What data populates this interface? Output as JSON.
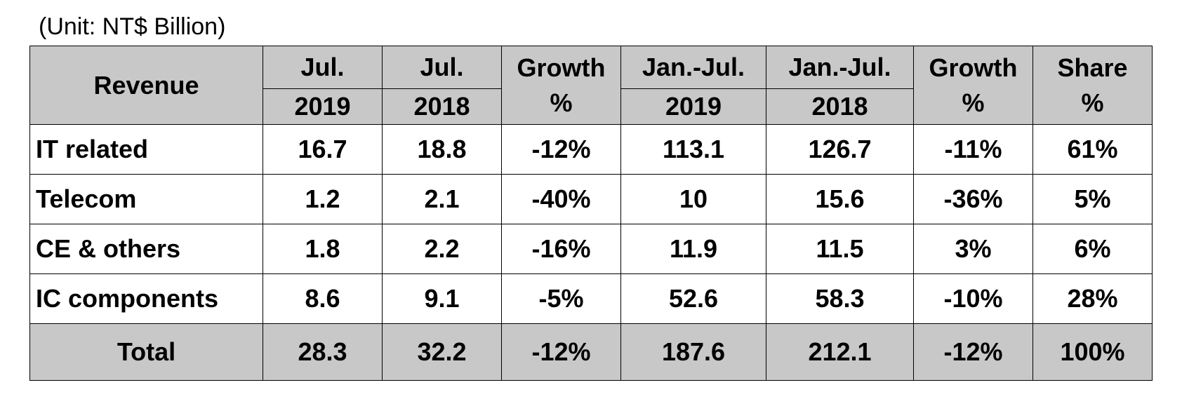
{
  "unit_note": "(Unit: NT$ Billion)",
  "chart_data": {
    "type": "table",
    "header": {
      "revenue": "Revenue",
      "groups": [
        {
          "top": "Jul.",
          "bottom": "2019"
        },
        {
          "top": "Jul.",
          "bottom": "2018"
        },
        {
          "top": "Growth",
          "bottom": "%"
        },
        {
          "top": "Jan.-Jul.",
          "bottom": "2019"
        },
        {
          "top": "Jan.-Jul.",
          "bottom": "2018"
        },
        {
          "top": "Growth",
          "bottom": "%"
        },
        {
          "top": "Share",
          "bottom": "%"
        }
      ]
    },
    "rows": [
      {
        "label": "IT related",
        "cells": [
          "16.7",
          "18.8",
          "-12%",
          "113.1",
          "126.7",
          "-11%",
          "61%"
        ]
      },
      {
        "label": "Telecom",
        "cells": [
          "1.2",
          "2.1",
          "-40%",
          "10",
          "15.6",
          "-36%",
          "5%"
        ]
      },
      {
        "label": "CE & others",
        "cells": [
          "1.8",
          "2.2",
          "-16%",
          "11.9",
          "11.5",
          "3%",
          "6%"
        ]
      },
      {
        "label": "IC components",
        "cells": [
          "8.6",
          "9.1",
          "-5%",
          "52.6",
          "58.3",
          "-10%",
          "28%"
        ]
      }
    ],
    "total": {
      "label": "Total",
      "cells": [
        "28.3",
        "32.2",
        "-12%",
        "187.6",
        "212.1",
        "-12%",
        "100%"
      ]
    }
  }
}
